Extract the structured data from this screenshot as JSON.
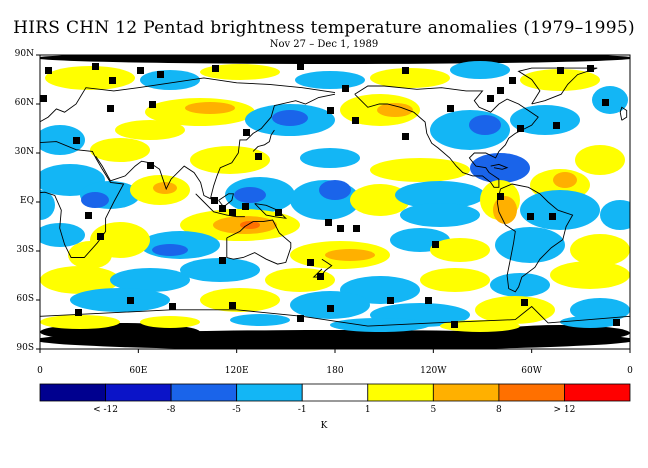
{
  "title": "HIRS CHN 12 Pentad brightness temperature anomalies (1979–1995)",
  "subtitle": "Nov 27 – Dec 1, 1989",
  "lat_labels": [
    "90N",
    "60N",
    "30N",
    "EQ",
    "30S",
    "60S",
    "90S"
  ],
  "lon_labels": [
    "0",
    "60E",
    "120E",
    "180",
    "120W",
    "60W",
    "0"
  ],
  "colorbar": {
    "labels": [
      "< -12",
      "-8",
      "-5",
      "-1",
      "1",
      "5",
      "8",
      "> 12"
    ],
    "unit": "K",
    "colors": [
      "#00008f",
      "#0b14c8",
      "#1a64ea",
      "#13b6f5",
      "#ffffff",
      "#ffff00",
      "#ffb000",
      "#ff7000",
      "#ff0000"
    ]
  },
  "map_colors": {
    "land_mask": "#000000",
    "coastline": "#000000",
    "strong_warm": "#ffb000",
    "strong_cold": "#1a64ea"
  }
}
